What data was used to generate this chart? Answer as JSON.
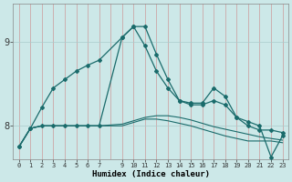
{
  "xlabel": "Humidex (Indice chaleur)",
  "ylabel": "",
  "background_color": "#cce8e8",
  "grid_color": "#aacccc",
  "line_color": "#1a6b6b",
  "ylim": [
    7.6,
    9.45
  ],
  "xlim": [
    -0.5,
    23.5
  ],
  "yticks": [
    8,
    9
  ],
  "xticks": [
    0,
    1,
    2,
    3,
    4,
    5,
    6,
    7,
    9,
    10,
    11,
    12,
    13,
    14,
    15,
    16,
    17,
    18,
    19,
    20,
    21,
    22,
    23
  ],
  "series_main": {
    "x": [
      0,
      1,
      2,
      3,
      4,
      5,
      6,
      7,
      9,
      10,
      11,
      12,
      13,
      14,
      15,
      16,
      17,
      18,
      19,
      20,
      21,
      22,
      23
    ],
    "y": [
      7.75,
      7.97,
      8.0,
      8.0,
      8.0,
      8.0,
      8.0,
      8.0,
      9.05,
      9.18,
      9.18,
      8.85,
      8.55,
      8.3,
      8.25,
      8.25,
      8.3,
      8.25,
      8.1,
      8.0,
      7.95,
      7.95,
      7.92
    ]
  },
  "series_steep": {
    "x": [
      0,
      1,
      2,
      3,
      4,
      5,
      6,
      7,
      9,
      10,
      11,
      12,
      13,
      14,
      15,
      16,
      17,
      18,
      19,
      20,
      21,
      22,
      23
    ],
    "y": [
      7.75,
      7.97,
      8.22,
      8.45,
      8.55,
      8.65,
      8.72,
      8.78,
      9.05,
      9.18,
      8.95,
      8.65,
      8.45,
      8.3,
      8.27,
      8.27,
      8.45,
      8.35,
      8.1,
      8.05,
      8.0,
      7.63,
      7.88
    ]
  },
  "series_flat1": {
    "x": [
      0,
      1,
      2,
      3,
      4,
      5,
      6,
      7,
      9,
      10,
      11,
      12,
      13,
      14,
      15,
      16,
      17,
      18,
      19,
      20,
      21,
      22,
      23
    ],
    "y": [
      7.75,
      7.97,
      8.0,
      8.0,
      8.0,
      8.0,
      8.0,
      8.0,
      8.02,
      8.06,
      8.1,
      8.12,
      8.12,
      8.1,
      8.07,
      8.03,
      7.99,
      7.96,
      7.93,
      7.9,
      7.87,
      7.85,
      7.83
    ]
  },
  "series_flat2": {
    "x": [
      0,
      1,
      2,
      3,
      4,
      5,
      6,
      7,
      9,
      10,
      11,
      12,
      13,
      14,
      15,
      16,
      17,
      18,
      19,
      20,
      21,
      22,
      23
    ],
    "y": [
      7.75,
      7.97,
      8.0,
      8.0,
      8.0,
      8.0,
      8.0,
      8.0,
      8.0,
      8.04,
      8.08,
      8.08,
      8.06,
      8.03,
      8.0,
      7.96,
      7.92,
      7.88,
      7.85,
      7.82,
      7.82,
      7.82,
      7.8
    ]
  }
}
